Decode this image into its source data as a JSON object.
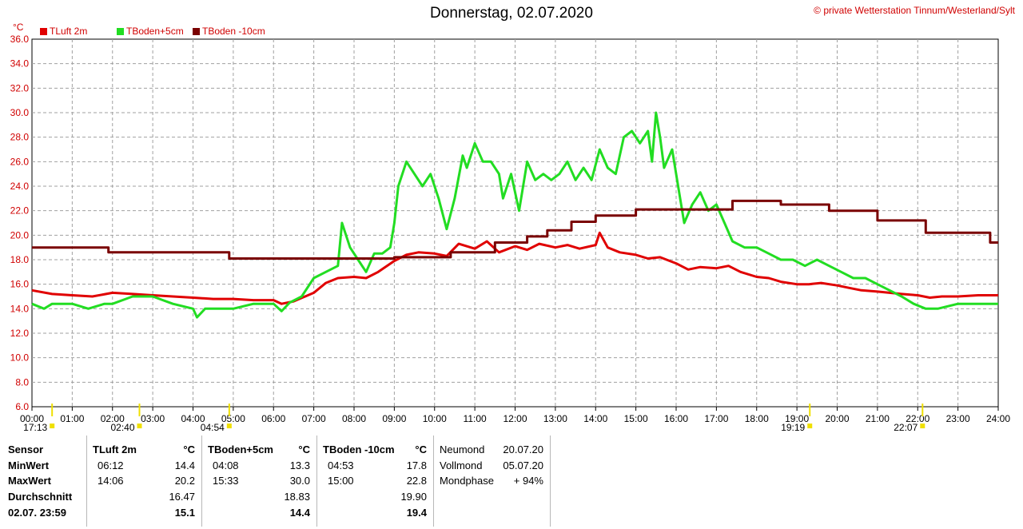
{
  "title": "Donnerstag, 02.07.2020",
  "copyright": "© private Wetterstation Tinnum/Westerland/Sylt",
  "unit": "°C",
  "colors": {
    "tluft": "#e00000",
    "tboden5": "#22dd22",
    "tboden10": "#7a0000",
    "grid": "#a0a0a0",
    "axis_text": "#d00000"
  },
  "chart_data": {
    "type": "line",
    "title": "Donnerstag, 02.07.2020",
    "ylabel": "°C",
    "xlabel": "",
    "xlim": [
      0,
      24
    ],
    "ylim": [
      6,
      36
    ],
    "grid": true,
    "legend_position": "top-left",
    "y_ticks": [
      "6.0",
      "8.0",
      "10.0",
      "12.0",
      "14.0",
      "16.0",
      "18.0",
      "20.0",
      "22.0",
      "24.0",
      "26.0",
      "28.0",
      "30.0",
      "32.0",
      "34.0",
      "36.0"
    ],
    "x_ticks": [
      "00:00",
      "01:00",
      "02:00",
      "03:00",
      "04:00",
      "05:00",
      "06:00",
      "07:00",
      "08:00",
      "09:00",
      "10:00",
      "11:00",
      "12:00",
      "13:00",
      "14:00",
      "15:00",
      "16:00",
      "17:00",
      "18:00",
      "19:00",
      "20:00",
      "21:00",
      "22:00",
      "23:00",
      "24:00"
    ],
    "series": [
      {
        "name": "TLuft 2m",
        "color": "#e00000",
        "x": [
          0,
          0.5,
          1,
          1.5,
          2,
          2.5,
          3,
          3.5,
          4,
          4.5,
          5,
          5.5,
          6,
          6.2,
          6.5,
          7,
          7.3,
          7.6,
          8,
          8.3,
          8.6,
          9,
          9.3,
          9.6,
          10,
          10.3,
          10.6,
          11,
          11.3,
          11.6,
          12,
          12.3,
          12.6,
          13,
          13.3,
          13.6,
          14,
          14.1,
          14.3,
          14.6,
          15,
          15.3,
          15.6,
          16,
          16.3,
          16.6,
          17,
          17.3,
          17.6,
          18,
          18.3,
          18.6,
          19,
          19.3,
          19.6,
          20,
          20.3,
          20.6,
          21,
          21.3,
          21.6,
          22,
          22.3,
          22.6,
          23,
          23.5,
          24
        ],
        "y": [
          15.5,
          15.2,
          15.1,
          15.0,
          15.3,
          15.2,
          15.1,
          15.0,
          14.9,
          14.8,
          14.8,
          14.7,
          14.7,
          14.4,
          14.6,
          15.3,
          16.1,
          16.5,
          16.6,
          16.5,
          17.0,
          17.9,
          18.4,
          18.6,
          18.5,
          18.3,
          19.3,
          18.9,
          19.5,
          18.6,
          19.1,
          18.8,
          19.3,
          19.0,
          19.2,
          18.9,
          19.2,
          20.2,
          19.0,
          18.6,
          18.4,
          18.1,
          18.2,
          17.7,
          17.2,
          17.4,
          17.3,
          17.5,
          17.0,
          16.6,
          16.5,
          16.2,
          16.0,
          16.0,
          16.1,
          15.9,
          15.7,
          15.5,
          15.4,
          15.3,
          15.2,
          15.1,
          14.9,
          15.0,
          15.0,
          15.1,
          15.1
        ]
      },
      {
        "name": "TBoden+5cm",
        "color": "#22dd22",
        "x": [
          0,
          0.3,
          0.5,
          1,
          1.4,
          1.8,
          2,
          2.5,
          3,
          3.5,
          4,
          4.1,
          4.3,
          4.5,
          5,
          5.5,
          6,
          6.2,
          6.4,
          6.7,
          7,
          7.3,
          7.6,
          7.7,
          7.9,
          8.1,
          8.3,
          8.5,
          8.7,
          8.9,
          9.0,
          9.1,
          9.3,
          9.5,
          9.7,
          9.9,
          10.1,
          10.3,
          10.5,
          10.7,
          10.8,
          11,
          11.2,
          11.4,
          11.6,
          11.7,
          11.9,
          12.1,
          12.3,
          12.5,
          12.7,
          12.9,
          13.1,
          13.3,
          13.5,
          13.7,
          13.9,
          14.1,
          14.3,
          14.5,
          14.7,
          14.9,
          15.1,
          15.3,
          15.4,
          15.5,
          15.6,
          15.7,
          15.9,
          16.0,
          16.1,
          16.2,
          16.4,
          16.6,
          16.8,
          17.0,
          17.2,
          17.4,
          17.7,
          18.0,
          18.3,
          18.6,
          18.9,
          19.2,
          19.5,
          19.8,
          20.1,
          20.4,
          20.7,
          21.0,
          21.3,
          21.6,
          21.9,
          22.2,
          22.5,
          23.0,
          23.5,
          24
        ],
        "y": [
          14.4,
          14.0,
          14.4,
          14.4,
          14.0,
          14.4,
          14.4,
          15.0,
          15.0,
          14.4,
          14.0,
          13.3,
          14.0,
          14.0,
          14.0,
          14.4,
          14.4,
          13.8,
          14.5,
          15.0,
          16.5,
          17.0,
          17.5,
          21.0,
          19.0,
          18.0,
          17.0,
          18.5,
          18.5,
          19.0,
          21.0,
          24.0,
          26.0,
          25.0,
          24.0,
          25.0,
          23.0,
          20.5,
          23.0,
          26.5,
          25.5,
          27.5,
          26.0,
          26.0,
          25.0,
          23.0,
          25.0,
          22.0,
          26.0,
          24.5,
          25.0,
          24.5,
          25.0,
          26.0,
          24.5,
          25.5,
          24.5,
          27.0,
          25.5,
          25.0,
          28.0,
          28.5,
          27.5,
          28.5,
          26.0,
          30.0,
          28.0,
          25.5,
          27.0,
          25.0,
          23.0,
          21.0,
          22.5,
          23.5,
          22.0,
          22.5,
          21.0,
          19.5,
          19.0,
          19.0,
          18.5,
          18.0,
          18.0,
          17.5,
          18.0,
          17.5,
          17.0,
          16.5,
          16.5,
          16.0,
          15.5,
          15.0,
          14.4,
          14.0,
          14.0,
          14.4,
          14.4,
          14.4
        ]
      },
      {
        "name": "TBoden -10cm",
        "color": "#7a0000",
        "x": [
          0,
          1.9,
          1.9,
          4.9,
          4.9,
          9.0,
          9.0,
          10.4,
          10.4,
          11.5,
          11.5,
          12.3,
          12.3,
          12.8,
          12.8,
          13.4,
          13.4,
          14.0,
          14.0,
          15.0,
          15.0,
          17.4,
          17.4,
          18.6,
          18.6,
          19.8,
          19.8,
          21.0,
          21.0,
          22.2,
          22.2,
          23.8,
          23.8,
          24
        ],
        "y": [
          19.0,
          19.0,
          18.6,
          18.6,
          18.1,
          18.1,
          18.2,
          18.2,
          18.6,
          18.6,
          19.4,
          19.4,
          19.9,
          19.9,
          20.4,
          20.4,
          21.1,
          21.1,
          21.6,
          21.6,
          22.1,
          22.1,
          22.8,
          22.8,
          22.5,
          22.5,
          22.0,
          22.0,
          21.2,
          21.2,
          20.2,
          20.2,
          19.4,
          19.4
        ]
      }
    ]
  },
  "time_markers": [
    {
      "label": "17:13",
      "time": 0.5
    },
    {
      "label": "02:40",
      "time": 2.67
    },
    {
      "label": "04:54",
      "time": 4.9
    },
    {
      "label": "19:19",
      "time": 19.32
    },
    {
      "label": "22:07",
      "time": 22.12
    }
  ],
  "stats": {
    "sensor_col": {
      "header": "Sensor",
      "rows": [
        "MinWert",
        "MaxWert",
        "Durchschnitt",
        "02.07. 23:59"
      ]
    },
    "tluft": {
      "header": "TLuft 2m",
      "unit": "°C",
      "min_time": "06:12",
      "min_val": "14.4",
      "max_time": "14:06",
      "max_val": "20.2",
      "avg": "16.47",
      "current": "15.1"
    },
    "tboden5": {
      "header": "TBoden+5cm",
      "unit": "°C",
      "min_time": "04:08",
      "min_val": "13.3",
      "max_time": "15:33",
      "max_val": "30.0",
      "avg": "18.83",
      "current": "14.4"
    },
    "tboden10": {
      "header": "TBoden -10cm",
      "unit": "°C",
      "min_time": "04:53",
      "min_val": "17.8",
      "max_time": "15:00",
      "max_val": "22.8",
      "avg": "19.90",
      "current": "19.4"
    },
    "moon": {
      "neumond_label": "Neumond",
      "neumond_date": "20.07.20",
      "vollmond_label": "Vollmond",
      "vollmond_date": "05.07.20",
      "phase_label": "Mondphase",
      "phase_value": "+ 94%"
    }
  }
}
